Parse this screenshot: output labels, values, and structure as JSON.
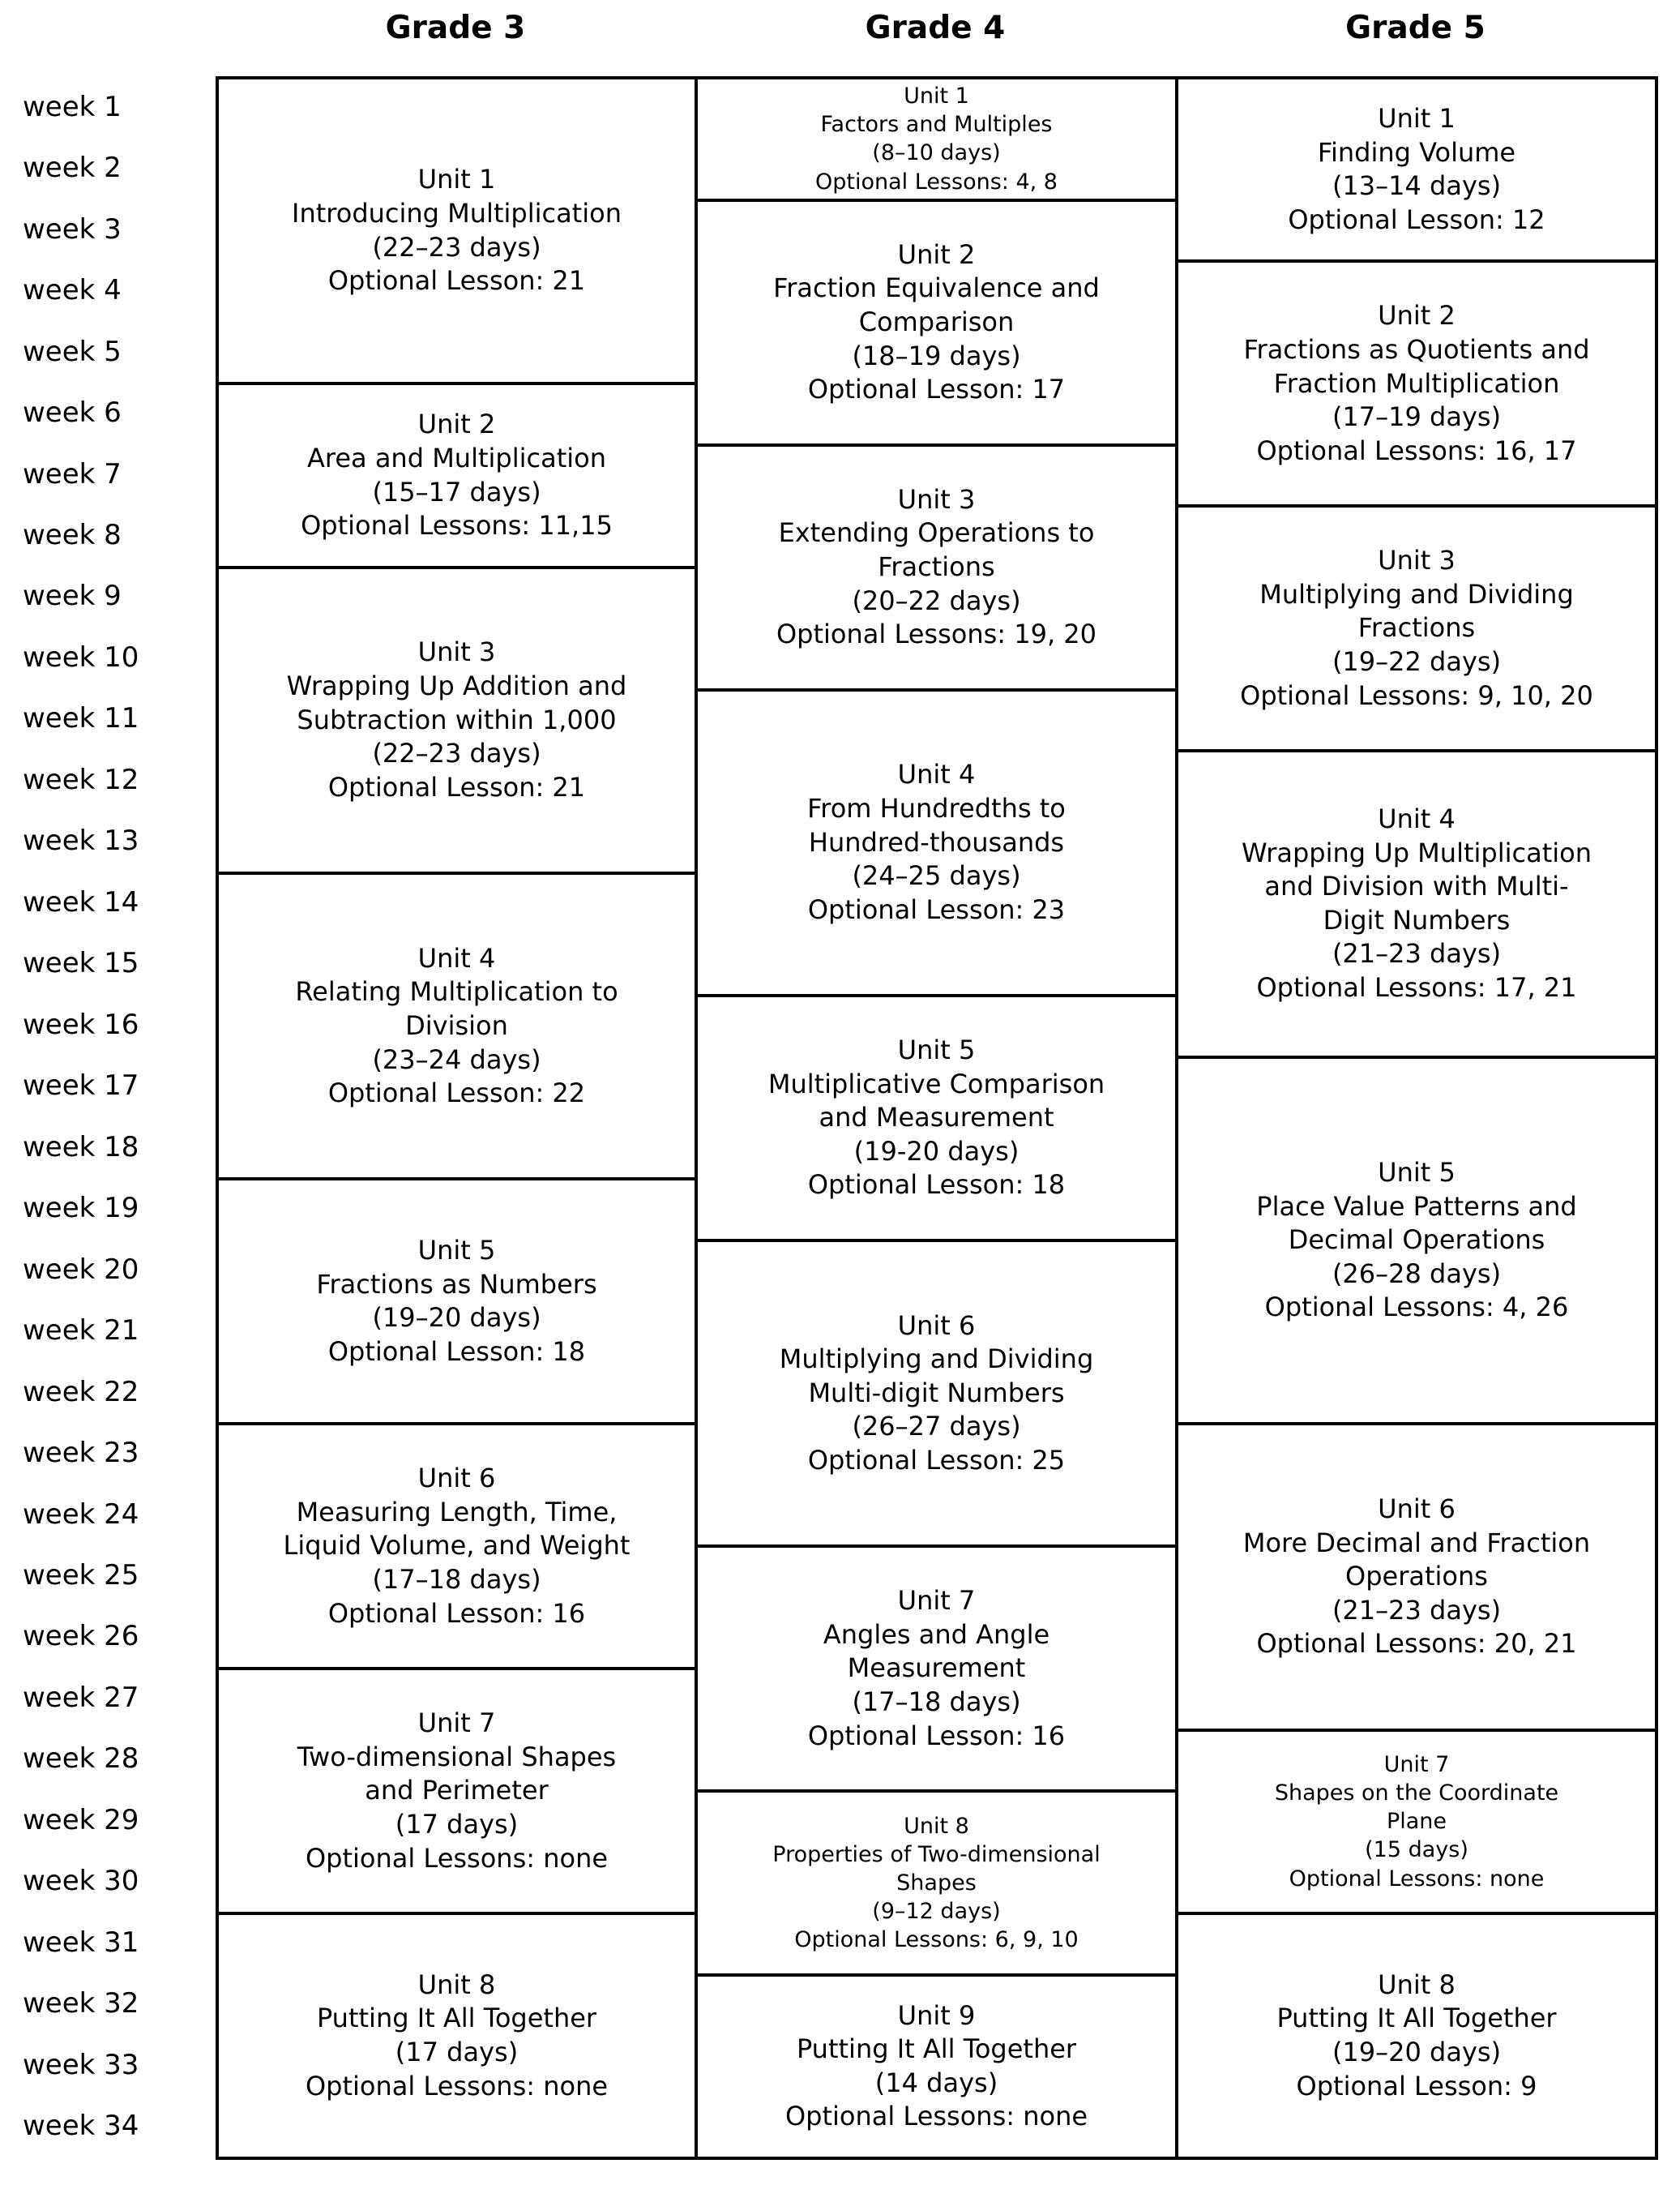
{
  "week_labels": [
    "week 1",
    "week 2",
    "week 3",
    "week 4",
    "week 5",
    "week 6",
    "week 7",
    "week 8",
    "week 9",
    "week 10",
    "week 11",
    "week 12",
    "week 13",
    "week 14",
    "week 15",
    "week 16",
    "week 17",
    "week 18",
    "week 19",
    "week 20",
    "week 21",
    "week 22",
    "week 23",
    "week 24",
    "week 25",
    "week 26",
    "week 27",
    "week 28",
    "week 29",
    "week 30",
    "week 31",
    "week 32",
    "week 33",
    "week 34"
  ],
  "columns": [
    {
      "header": "Grade 3",
      "units": [
        {
          "unit": "Unit 1",
          "title": "Introducing Multiplication",
          "days": "(22–23 days)",
          "optional": "Optional Lesson: 21",
          "weeks": {
            "start": 1,
            "end": 5
          },
          "small": false
        },
        {
          "unit": "Unit 2",
          "title": "Area and Multiplication",
          "days": "(15–17 days)",
          "optional": "Optional Lessons: 11,15",
          "weeks": {
            "start": 6,
            "end": 8
          },
          "small": false
        },
        {
          "unit": "Unit 3",
          "title": "Wrapping Up Addition and\nSubtraction within 1,000",
          "days": "(22–23 days)",
          "optional": "Optional Lesson: 21",
          "weeks": {
            "start": 9,
            "end": 13
          },
          "small": false
        },
        {
          "unit": "Unit 4",
          "title": "Relating Multiplication to\nDivision",
          "days": "(23–24 days)",
          "optional": "Optional Lesson: 22",
          "weeks": {
            "start": 14,
            "end": 18
          },
          "small": false
        },
        {
          "unit": "Unit 5",
          "title": "Fractions as Numbers",
          "days": "(19–20 days)",
          "optional": "Optional Lesson: 18",
          "weeks": {
            "start": 19,
            "end": 22
          },
          "small": false
        },
        {
          "unit": "Unit 6",
          "title": "Measuring Length, Time,\nLiquid Volume, and Weight",
          "days": "(17–18 days)",
          "optional": "Optional Lesson: 16",
          "weeks": {
            "start": 23,
            "end": 26
          },
          "small": false
        },
        {
          "unit": "Unit 7",
          "title": "Two-dimensional Shapes\nand Perimeter",
          "days": "(17 days)",
          "optional": "Optional Lessons: none",
          "weeks": {
            "start": 27,
            "end": 30
          },
          "small": false
        },
        {
          "unit": "Unit 8",
          "title": "Putting It All Together",
          "days": "(17 days)",
          "optional": "Optional Lessons: none",
          "weeks": {
            "start": 31,
            "end": 34
          },
          "small": false
        }
      ]
    },
    {
      "header": "Grade 4",
      "units": [
        {
          "unit": "Unit 1",
          "title": "Factors and Multiples",
          "days": "(8–10 days)",
          "optional": "Optional Lessons: 4, 8",
          "weeks": {
            "start": 1,
            "end": 2
          },
          "small": true
        },
        {
          "unit": "Unit 2",
          "title": "Fraction Equivalence and\nComparison",
          "days": "(18–19 days)",
          "optional": "Optional Lesson: 17",
          "weeks": {
            "start": 3,
            "end": 6
          },
          "small": false
        },
        {
          "unit": "Unit 3",
          "title": "Extending Operations to\nFractions",
          "days": "(20–22 days)",
          "optional": "Optional Lessons: 19, 20",
          "weeks": {
            "start": 7,
            "end": 10
          },
          "small": false
        },
        {
          "unit": "Unit 4",
          "title": "From Hundredths to\nHundred-thousands",
          "days": "(24–25 days)",
          "optional": "Optional Lesson: 23",
          "weeks": {
            "start": 11,
            "end": 15
          },
          "small": false
        },
        {
          "unit": "Unit 5",
          "title": "Multiplicative Comparison\nand Measurement",
          "days": "(19-20 days)",
          "optional": "Optional Lesson: 18",
          "weeks": {
            "start": 16,
            "end": 19
          },
          "small": false
        },
        {
          "unit": "Unit 6",
          "title": "Multiplying and Dividing\nMulti-digit Numbers",
          "days": "(26–27 days)",
          "optional": "Optional Lesson: 25",
          "weeks": {
            "start": 20,
            "end": 24
          },
          "small": false
        },
        {
          "unit": "Unit 7",
          "title": "Angles and Angle\nMeasurement",
          "days": "(17–18 days)",
          "optional": "Optional Lesson: 16",
          "weeks": {
            "start": 25,
            "end": 28
          },
          "small": false
        },
        {
          "unit": "Unit 8",
          "title": "Properties of Two-dimensional\nShapes",
          "days": "(9–12 days)",
          "optional": "Optional Lessons: 6, 9, 10",
          "weeks": {
            "start": 29,
            "end": 31
          },
          "small": true
        },
        {
          "unit": "Unit 9",
          "title": "Putting It All Together",
          "days": "(14 days)",
          "optional": "Optional Lessons: none",
          "weeks": {
            "start": 32,
            "end": 34
          },
          "small": false
        }
      ]
    },
    {
      "header": "Grade 5",
      "units": [
        {
          "unit": "Unit 1",
          "title": "Finding Volume",
          "days": "(13–14 days)",
          "optional": "Optional Lesson: 12",
          "weeks": {
            "start": 1,
            "end": 3
          },
          "small": false
        },
        {
          "unit": "Unit 2",
          "title": "Fractions as Quotients and\nFraction Multiplication",
          "days": "(17–19 days)",
          "optional": "Optional Lessons: 16, 17",
          "weeks": {
            "start": 4,
            "end": 7
          },
          "small": false
        },
        {
          "unit": "Unit 3",
          "title": "Multiplying and Dividing\nFractions",
          "days": "(19–22 days)",
          "optional": "Optional Lessons: 9, 10, 20",
          "weeks": {
            "start": 8,
            "end": 11
          },
          "small": false
        },
        {
          "unit": "Unit 4",
          "title": "Wrapping Up Multiplication\nand Division with Multi-\nDigit Numbers",
          "days": "(21–23 days)",
          "optional": "Optional Lessons: 17, 21",
          "weeks": {
            "start": 12,
            "end": 16
          },
          "small": false
        },
        {
          "unit": "Unit 5",
          "title": "Place Value Patterns and\nDecimal Operations",
          "days": "(26–28 days)",
          "optional": "Optional Lessons: 4, 26",
          "weeks": {
            "start": 17,
            "end": 22
          },
          "small": false
        },
        {
          "unit": "Unit 6",
          "title": "More Decimal and Fraction\nOperations",
          "days": "(21–23 days)",
          "optional": "Optional Lessons: 20, 21",
          "weeks": {
            "start": 23,
            "end": 27
          },
          "small": false
        },
        {
          "unit": "Unit 7",
          "title": "Shapes on the Coordinate\nPlane",
          "days": "(15 days)",
          "optional": "Optional Lessons: none",
          "weeks": {
            "start": 28,
            "end": 30
          },
          "small": true
        },
        {
          "unit": "Unit 8",
          "title": "Putting It All Together",
          "days": "(19–20 days)",
          "optional": "Optional Lesson: 9",
          "weeks": {
            "start": 31,
            "end": 34
          },
          "small": false
        }
      ]
    }
  ]
}
